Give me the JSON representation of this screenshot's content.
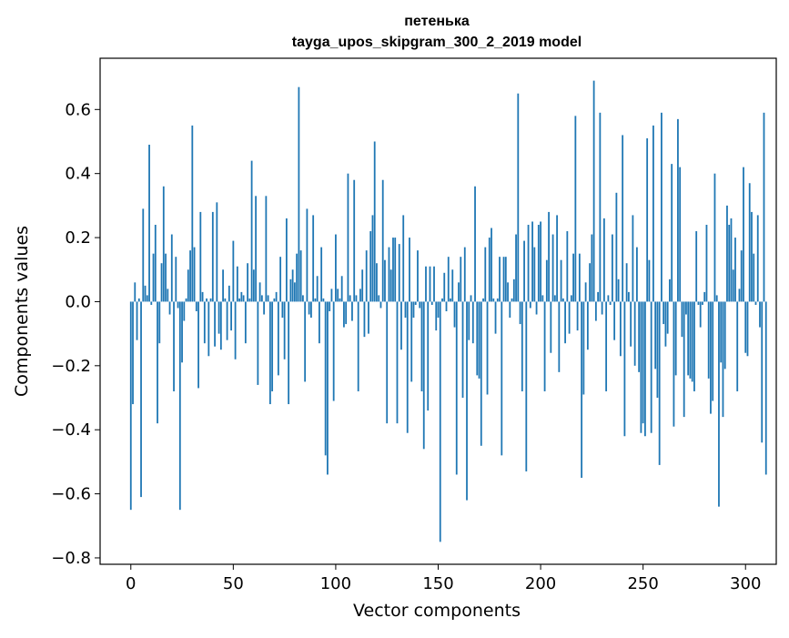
{
  "chart_data": {
    "type": "bar",
    "title": "петенька",
    "subtitle": "tayga_upos_skipgram_300_2_2019 model",
    "xlabel": "Vector components",
    "ylabel": "Components values",
    "xlim": [
      -15,
      315
    ],
    "ylim": [
      -0.82,
      0.76
    ],
    "xticks": [
      0,
      50,
      100,
      150,
      200,
      250,
      300
    ],
    "xtick_labels": [
      "0",
      "50",
      "100",
      "150",
      "200",
      "250",
      "300"
    ],
    "yticks": [
      -0.8,
      -0.6,
      -0.4,
      -0.2,
      0.0,
      0.2,
      0.4,
      0.6
    ],
    "ytick_labels": [
      "−0.8",
      "−0.6",
      "−0.4",
      "−0.2",
      "0.0",
      "0.2",
      "0.4",
      "0.6"
    ],
    "grid": false,
    "legend": "none",
    "bar_color": "#1f77b4",
    "values": [
      -0.65,
      -0.32,
      0.06,
      -0.12,
      0.01,
      -0.61,
      0.29,
      0.05,
      0.02,
      0.49,
      -0.01,
      0.15,
      0.24,
      -0.38,
      -0.13,
      0.12,
      0.36,
      0.15,
      0.04,
      -0.04,
      0.21,
      -0.28,
      0.14,
      -0.02,
      -0.65,
      -0.19,
      -0.06,
      0.01,
      0.1,
      0.16,
      0.55,
      0.17,
      -0.03,
      -0.27,
      0.28,
      0.03,
      -0.13,
      0.01,
      -0.17,
      0.01,
      0.28,
      -0.14,
      0.31,
      -0.1,
      -0.15,
      0.1,
      0.01,
      -0.12,
      0.05,
      -0.09,
      0.19,
      -0.18,
      0.11,
      0.01,
      0.03,
      0.02,
      -0.13,
      0.12,
      0.01,
      0.44,
      0.1,
      0.33,
      -0.26,
      0.06,
      0.02,
      -0.04,
      0.33,
      0.02,
      -0.32,
      -0.28,
      0.01,
      0.03,
      -0.23,
      0.14,
      -0.05,
      -0.18,
      0.26,
      -0.32,
      0.07,
      0.1,
      0.06,
      0.15,
      0.67,
      0.16,
      0.02,
      -0.25,
      0.29,
      -0.04,
      -0.05,
      0.27,
      0.01,
      0.08,
      -0.13,
      0.17,
      0.01,
      -0.48,
      -0.54,
      -0.03,
      0.04,
      -0.31,
      0.21,
      0.04,
      0.01,
      0.08,
      -0.08,
      -0.07,
      0.4,
      0.02,
      -0.06,
      0.38,
      0.02,
      -0.28,
      0.04,
      0.1,
      -0.11,
      0.16,
      -0.1,
      0.22,
      0.27,
      0.5,
      0.12,
      0.02,
      -0.02,
      0.38,
      0.13,
      -0.38,
      0.17,
      0.1,
      0.2,
      0.2,
      -0.38,
      0.18,
      -0.15,
      0.27,
      -0.05,
      -0.41,
      0.2,
      -0.25,
      -0.05,
      -0.01,
      0.16,
      -0.02,
      -0.28,
      -0.46,
      0.11,
      -0.34,
      0.11,
      -0.01,
      0.11,
      -0.09,
      -0.05,
      -0.75,
      0.01,
      0.09,
      -0.03,
      0.14,
      0.01,
      0.1,
      -0.08,
      -0.54,
      0.06,
      0.14,
      -0.3,
      0.17,
      -0.62,
      -0.12,
      0.02,
      -0.13,
      0.36,
      -0.23,
      -0.24,
      -0.45,
      0.01,
      0.17,
      -0.29,
      0.2,
      0.23,
      0.01,
      -0.1,
      0.01,
      0.14,
      -0.48,
      0.14,
      0.14,
      0.06,
      -0.05,
      0.01,
      0.07,
      0.21,
      0.65,
      -0.07,
      -0.28,
      0.19,
      -0.53,
      0.24,
      -0.02,
      0.25,
      0.17,
      -0.04,
      0.24,
      0.25,
      0.02,
      -0.28,
      0.13,
      0.28,
      -0.16,
      0.21,
      0.02,
      0.27,
      -0.22,
      0.13,
      0.01,
      -0.13,
      0.22,
      -0.1,
      0.02,
      0.15,
      0.58,
      -0.09,
      0.15,
      -0.55,
      -0.29,
      0.06,
      -0.15,
      0.12,
      0.21,
      0.69,
      -0.06,
      0.03,
      0.59,
      -0.04,
      0.26,
      -0.28,
      0.02,
      -0.01,
      0.21,
      -0.12,
      0.34,
      0.07,
      -0.17,
      0.52,
      -0.42,
      0.12,
      0.03,
      -0.14,
      0.27,
      -0.2,
      0.17,
      -0.22,
      -0.41,
      -0.38,
      -0.42,
      0.51,
      0.13,
      -0.41,
      0.55,
      -0.21,
      -0.3,
      -0.51,
      0.59,
      -0.07,
      -0.14,
      -0.1,
      0.07,
      0.43,
      -0.39,
      -0.23,
      0.57,
      0.42,
      -0.11,
      -0.36,
      -0.04,
      -0.23,
      -0.24,
      -0.25,
      -0.28,
      0.22,
      -0.01,
      -0.08,
      -0.01,
      0.03,
      0.24,
      -0.24,
      -0.35,
      -0.31,
      0.4,
      0.02,
      -0.64,
      -0.19,
      -0.36,
      -0.21,
      0.3,
      0.24,
      0.26,
      0.1,
      0.2,
      -0.28,
      0.04,
      0.16,
      0.42,
      -0.16,
      -0.17,
      0.37,
      0.28,
      0.15,
      -0.01,
      0.27,
      -0.08,
      -0.44,
      0.59,
      -0.54
    ]
  }
}
